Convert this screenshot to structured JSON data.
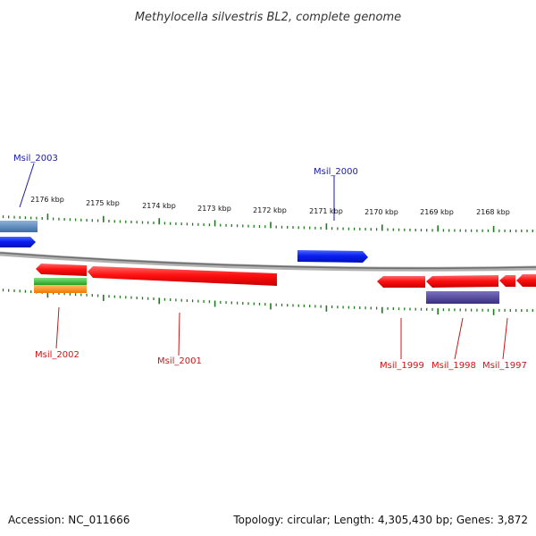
{
  "title": "Methylocella silvestris BL2, complete genome",
  "footer": {
    "accession": "Accession: NC_011666",
    "summary": "Topology: circular; Length: 4,305,430 bp; Genes: 3,872"
  },
  "colors": {
    "forward_strand_gene": "#0a20f0",
    "reverse_strand_gene": "#ff1010",
    "forward_label": "#1a1aa8",
    "reverse_label": "#d01515",
    "tick": "#1f7a1f",
    "backbone": "#808080",
    "feature_steelblue": "#4a7fb5",
    "feature_green": "#33b833",
    "feature_orange": "#ff8c1a",
    "feature_purple": "#4a3f8f"
  },
  "scale": {
    "unit": "kbp",
    "labels": [
      "2176 kbp",
      "2175 kbp",
      "2174 kbp",
      "2173 kbp",
      "2172 kbp",
      "2171 kbp",
      "2170 kbp",
      "2169 kbp",
      "2168 kbp"
    ]
  },
  "genes": [
    {
      "name": "Msil_2003",
      "strand": "forward"
    },
    {
      "name": "Msil_2000",
      "strand": "forward"
    },
    {
      "name": "Msil_2002",
      "strand": "reverse"
    },
    {
      "name": "Msil_2001",
      "strand": "reverse"
    },
    {
      "name": "Msil_1999",
      "strand": "reverse"
    },
    {
      "name": "Msil_1998",
      "strand": "reverse"
    },
    {
      "name": "Msil_1997",
      "strand": "reverse"
    }
  ]
}
